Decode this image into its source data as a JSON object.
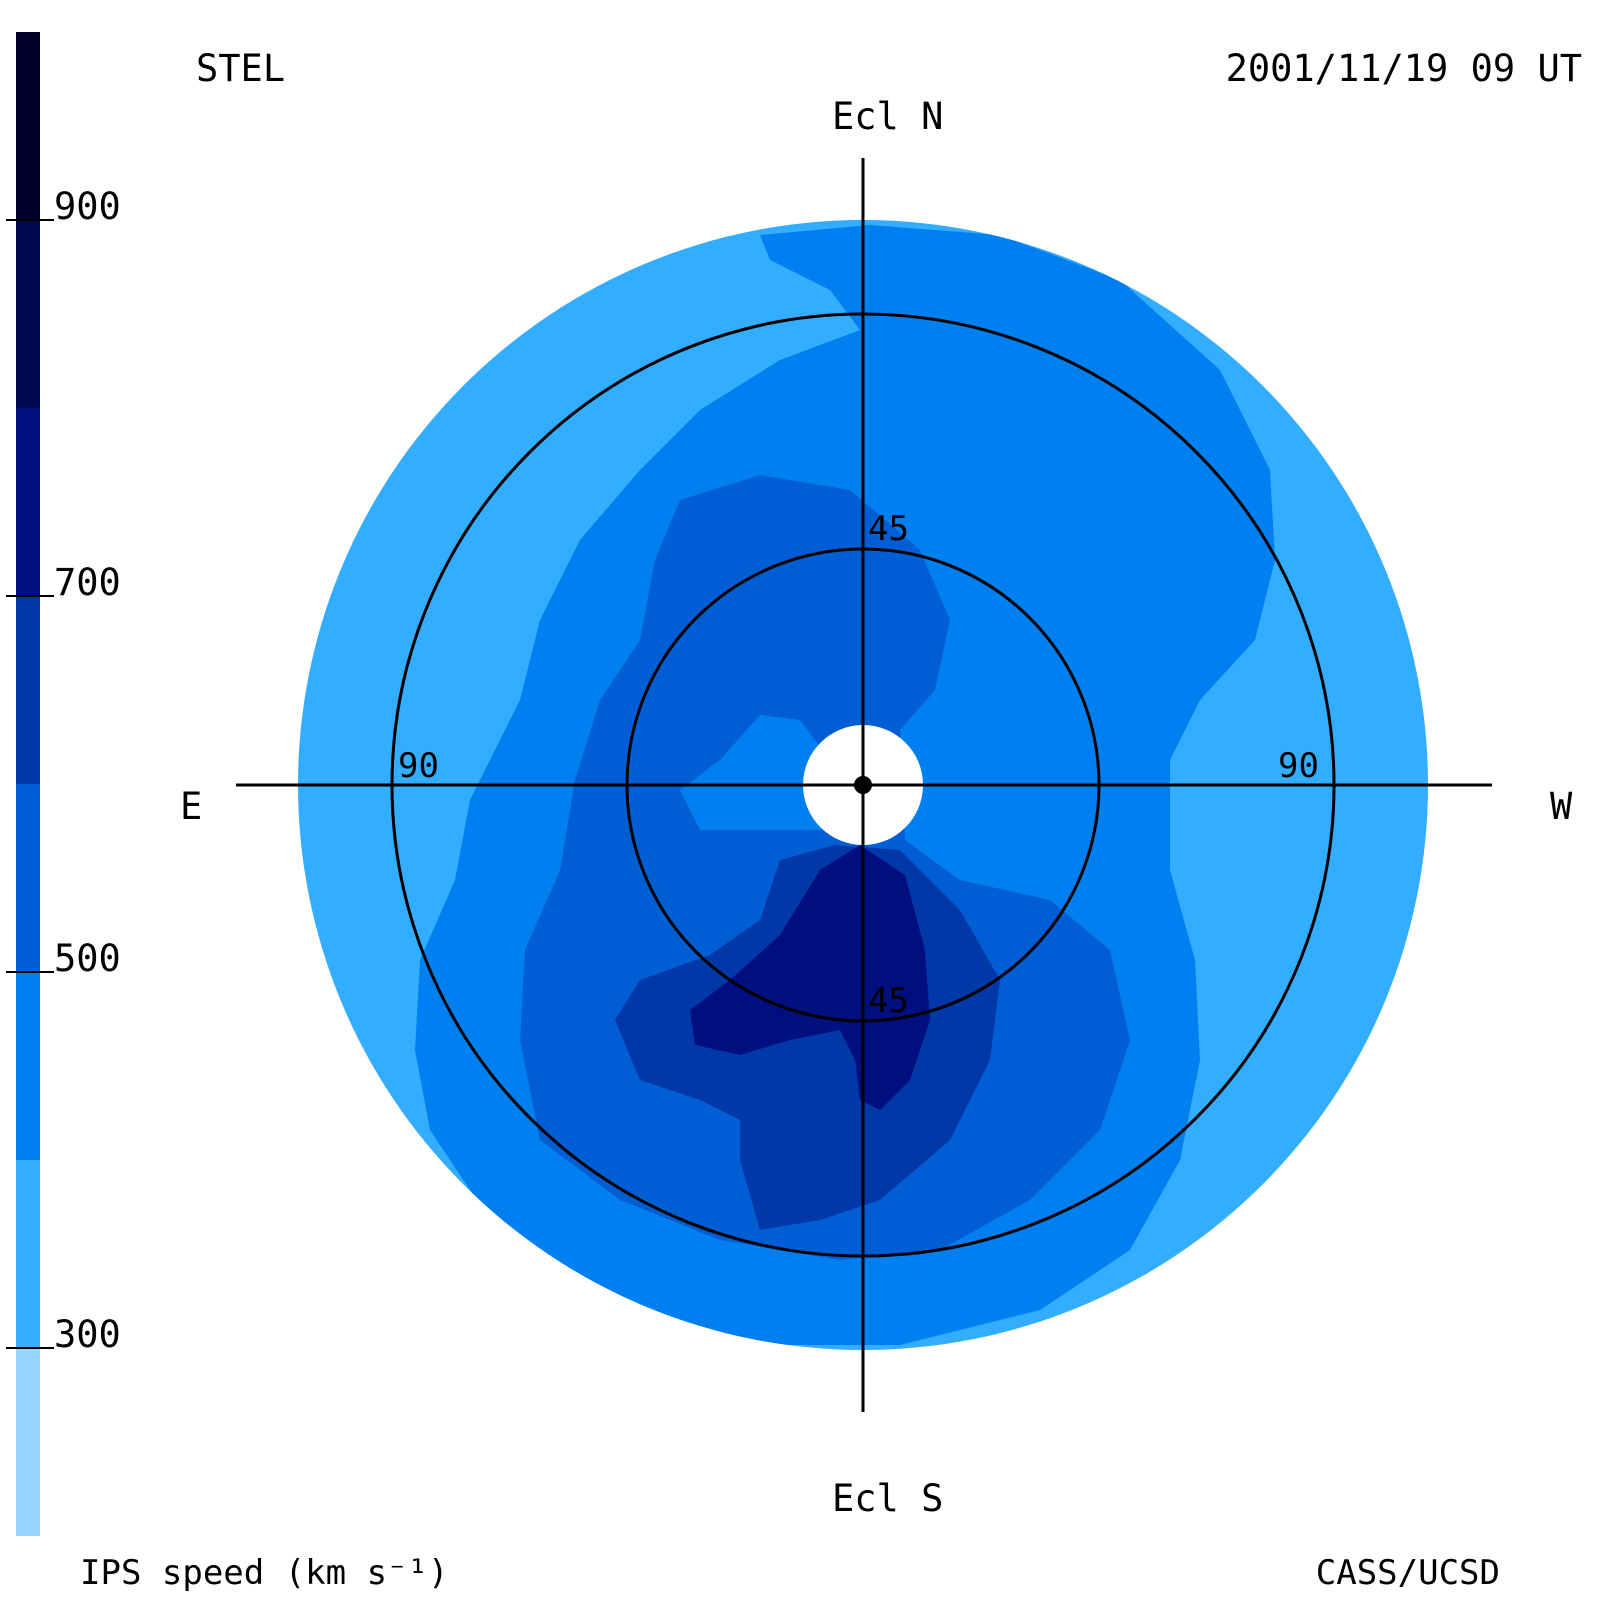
{
  "chart_data": {
    "type": "heatmap",
    "subtype": "polar sky map (fisheye, ecliptic coordinates)",
    "title_left": "STEL",
    "title_right": "2001/11/19 09 UT",
    "credit": "CASS/UCSD",
    "colorbar": {
      "label": "IPS speed (km s⁻¹)",
      "range": [
        200,
        1000
      ],
      "ticks": [
        300,
        500,
        700,
        900
      ],
      "levels": [
        {
          "from": 200,
          "to": 300,
          "color": "#99d4ff"
        },
        {
          "from": 300,
          "to": 400,
          "color": "#33adff"
        },
        {
          "from": 400,
          "to": 500,
          "color": "#0080f0"
        },
        {
          "from": 500,
          "to": 600,
          "color": "#005ed4"
        },
        {
          "from": 600,
          "to": 700,
          "color": "#0038a8"
        },
        {
          "from": 700,
          "to": 800,
          "color": "#000f80"
        },
        {
          "from": 800,
          "to": 900,
          "color": "#000850"
        },
        {
          "from": 900,
          "to": 1000,
          "color": "#00002a"
        }
      ]
    },
    "axes": {
      "north": "Ecl N",
      "south": "Ecl S",
      "east": "E",
      "west": "W"
    },
    "elongation_rings": [
      {
        "value": 45,
        "labels": [
          "45",
          "45"
        ]
      },
      {
        "value": 90,
        "labels": [
          "90",
          "90"
        ]
      }
    ],
    "grid": true,
    "speed_regions": [
      {
        "region": "outer rim (east and west flanks)",
        "speed_range": [
          300,
          400
        ]
      },
      {
        "region": "north-west / general background",
        "speed_range": [
          400,
          500
        ]
      },
      {
        "region": "inner belt around sun",
        "speed_range": [
          500,
          600
        ]
      },
      {
        "region": "south lobe",
        "speed_range": [
          600,
          700
        ]
      },
      {
        "region": "south core near ecliptic south",
        "speed_range": [
          700,
          800
        ]
      }
    ]
  }
}
